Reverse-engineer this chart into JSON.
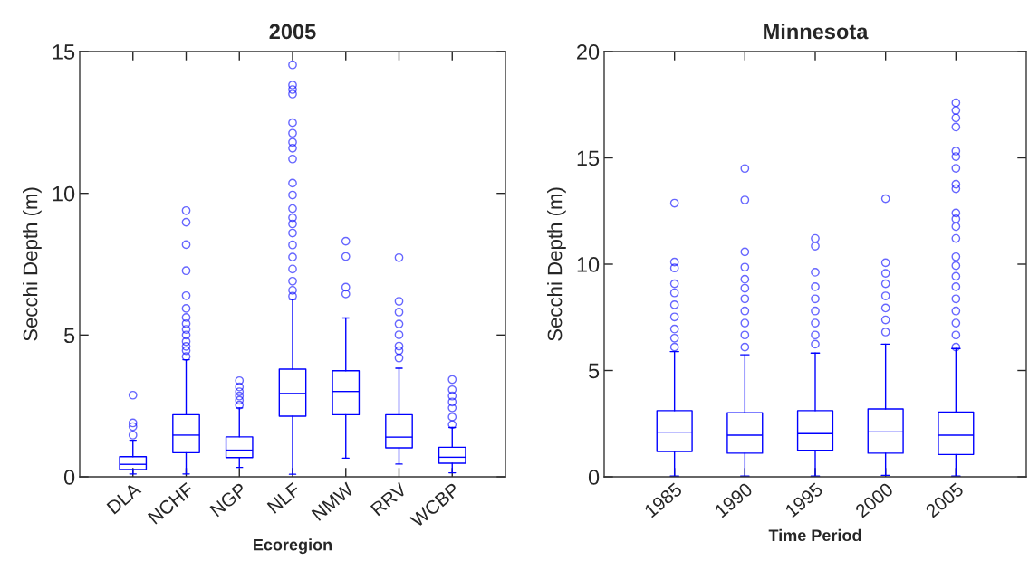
{
  "chart_data": [
    {
      "type": "box",
      "title": "2005",
      "xlabel": "Ecoregion",
      "ylabel": "Secchi Depth (m)",
      "categories": [
        "DLA",
        "NCHF",
        "NGP",
        "NLF",
        "NMW",
        "RRV",
        "WCBP"
      ],
      "color": "#0000ff",
      "marker": "circle",
      "ylim": [
        0,
        15
      ],
      "yticks": [
        0,
        5,
        10,
        15
      ],
      "grid": false,
      "boxes": [
        {
          "low": 0.1,
          "q1": 0.26,
          "median": 0.44,
          "q3": 0.71,
          "high": 1.29,
          "outliers": [
            2.88,
            1.9,
            1.77,
            1.47
          ]
        },
        {
          "low": 0.1,
          "q1": 0.85,
          "median": 1.47,
          "q3": 2.19,
          "high": 4.13,
          "outliers": [
            9.39,
            8.98,
            8.19,
            7.27,
            6.39,
            5.94,
            5.62,
            5.4,
            5.2,
            5.0,
            4.77,
            4.6,
            4.45,
            4.24
          ]
        },
        {
          "low": 0.33,
          "q1": 0.68,
          "median": 0.94,
          "q3": 1.41,
          "high": 2.43,
          "outliers": [
            3.39,
            3.17,
            3.0,
            2.85,
            2.7,
            2.53
          ]
        },
        {
          "low": 0.09,
          "q1": 2.14,
          "median": 2.94,
          "q3": 3.8,
          "high": 6.26,
          "outliers": [
            14.53,
            13.82,
            13.66,
            13.5,
            12.49,
            12.12,
            11.8,
            11.59,
            11.21,
            10.36,
            9.94,
            9.46,
            9.14,
            8.92,
            8.6,
            8.18,
            7.75,
            7.33,
            6.9,
            6.58,
            6.37
          ]
        },
        {
          "low": 0.66,
          "q1": 2.19,
          "median": 3.01,
          "q3": 3.74,
          "high": 5.6,
          "outliers": [
            8.31,
            7.77,
            6.69,
            6.45
          ]
        },
        {
          "low": 0.45,
          "q1": 1.02,
          "median": 1.4,
          "q3": 2.19,
          "high": 3.83,
          "outliers": [
            7.73,
            6.19,
            5.81,
            5.39,
            5.01,
            4.61,
            4.45,
            4.19
          ]
        },
        {
          "low": 0.14,
          "q1": 0.48,
          "median": 0.69,
          "q3": 1.04,
          "high": 1.74,
          "outliers": [
            3.43,
            3.07,
            2.85,
            2.64,
            2.43,
            2.11,
            1.84
          ]
        }
      ]
    },
    {
      "type": "box",
      "title": "Minnesota",
      "xlabel": "Time Period",
      "ylabel": "Secchi Depth (m)",
      "categories": [
        "1985",
        "1990",
        "1995",
        "2000",
        "2005"
      ],
      "color": "#0000ff",
      "marker": "circle",
      "ylim": [
        0,
        20
      ],
      "yticks": [
        0,
        5,
        10,
        15,
        20
      ],
      "grid": false,
      "boxes": [
        {
          "low": 0.03,
          "q1": 1.19,
          "median": 2.1,
          "q3": 3.11,
          "high": 5.89,
          "outliers": [
            12.87,
            10.1,
            9.82,
            9.08,
            8.65,
            8.09,
            7.52,
            6.95,
            6.52,
            6.1
          ]
        },
        {
          "low": 0.03,
          "q1": 1.11,
          "median": 1.96,
          "q3": 3.01,
          "high": 5.74,
          "outliers": [
            14.5,
            13.02,
            10.58,
            9.86,
            9.29,
            8.87,
            8.37,
            7.8,
            7.23,
            6.67,
            6.1
          ]
        },
        {
          "low": 0.03,
          "q1": 1.25,
          "median": 2.03,
          "q3": 3.11,
          "high": 5.82,
          "outliers": [
            11.21,
            10.85,
            9.62,
            8.94,
            8.37,
            7.8,
            7.23,
            6.67,
            6.24
          ]
        },
        {
          "low": 0.07,
          "q1": 1.11,
          "median": 2.11,
          "q3": 3.19,
          "high": 6.24,
          "outliers": [
            13.08,
            10.07,
            9.57,
            9.08,
            8.51,
            7.94,
            7.38,
            6.81
          ]
        },
        {
          "low": 0.03,
          "q1": 1.05,
          "median": 1.96,
          "q3": 3.05,
          "high": 6.03,
          "outliers": [
            17.59,
            17.23,
            16.88,
            16.45,
            15.32,
            15.06,
            14.51,
            13.76,
            13.55,
            12.41,
            12.13,
            11.77,
            11.21,
            10.35,
            9.93,
            9.43,
            8.94,
            8.37,
            7.8,
            7.23,
            6.67,
            6.1
          ]
        }
      ]
    }
  ]
}
